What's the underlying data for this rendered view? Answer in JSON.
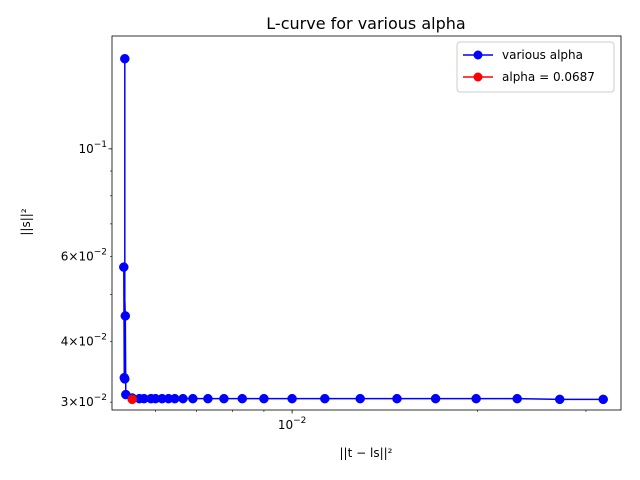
{
  "chart_data": {
    "type": "line",
    "title": "L-curve for various alpha",
    "xlabel": "||t − ls||²",
    "ylabel": "||s||²",
    "xscale": "log",
    "yscale": "log",
    "xlim": [
      0.0051,
      0.0342
    ],
    "ylim": [
      0.0289,
      0.171
    ],
    "x_major_ticks": [
      {
        "value": 0.01,
        "label": "10",
        "exp": "−2"
      }
    ],
    "y_major_ticks": [
      {
        "value": 0.1,
        "label": "10",
        "exp": "−1"
      }
    ],
    "y_minor_ticks": [
      {
        "value": 0.03,
        "label": "3×10",
        "exp": "−2"
      },
      {
        "value": 0.04,
        "label": "4×10",
        "exp": "−2"
      },
      {
        "value": 0.06,
        "label": "6×10",
        "exp": "−2"
      }
    ],
    "legend_position": "upper right",
    "series": [
      {
        "name": "various alpha",
        "color": "#0000ff",
        "marker": "circle",
        "x": [
          0.00535,
          0.00535,
          0.00534,
          0.00533,
          0.00536,
          0.00537,
          0.0055,
          0.00565,
          0.00575,
          0.0059,
          0.006,
          0.00615,
          0.0063,
          0.00645,
          0.00665,
          0.0069,
          0.0073,
          0.00775,
          0.0083,
          0.009,
          0.01,
          0.0113,
          0.0129,
          0.0148,
          0.0171,
          0.0199,
          0.0232,
          0.0272,
          0.032
        ],
        "y": [
          0.1535,
          0.0335,
          0.0337,
          0.057,
          0.0452,
          0.0311,
          0.0306,
          0.0305,
          0.0305,
          0.0305,
          0.0305,
          0.0305,
          0.0305,
          0.0305,
          0.0305,
          0.0305,
          0.0305,
          0.0305,
          0.0305,
          0.0305,
          0.0305,
          0.0305,
          0.0305,
          0.0305,
          0.0305,
          0.0305,
          0.0305,
          0.0304,
          0.0304
        ]
      },
      {
        "name": "alpha = 0.0687",
        "color": "#ff0000",
        "marker": "circle",
        "x": [
          0.0055
        ],
        "y": [
          0.0304
        ]
      }
    ]
  }
}
